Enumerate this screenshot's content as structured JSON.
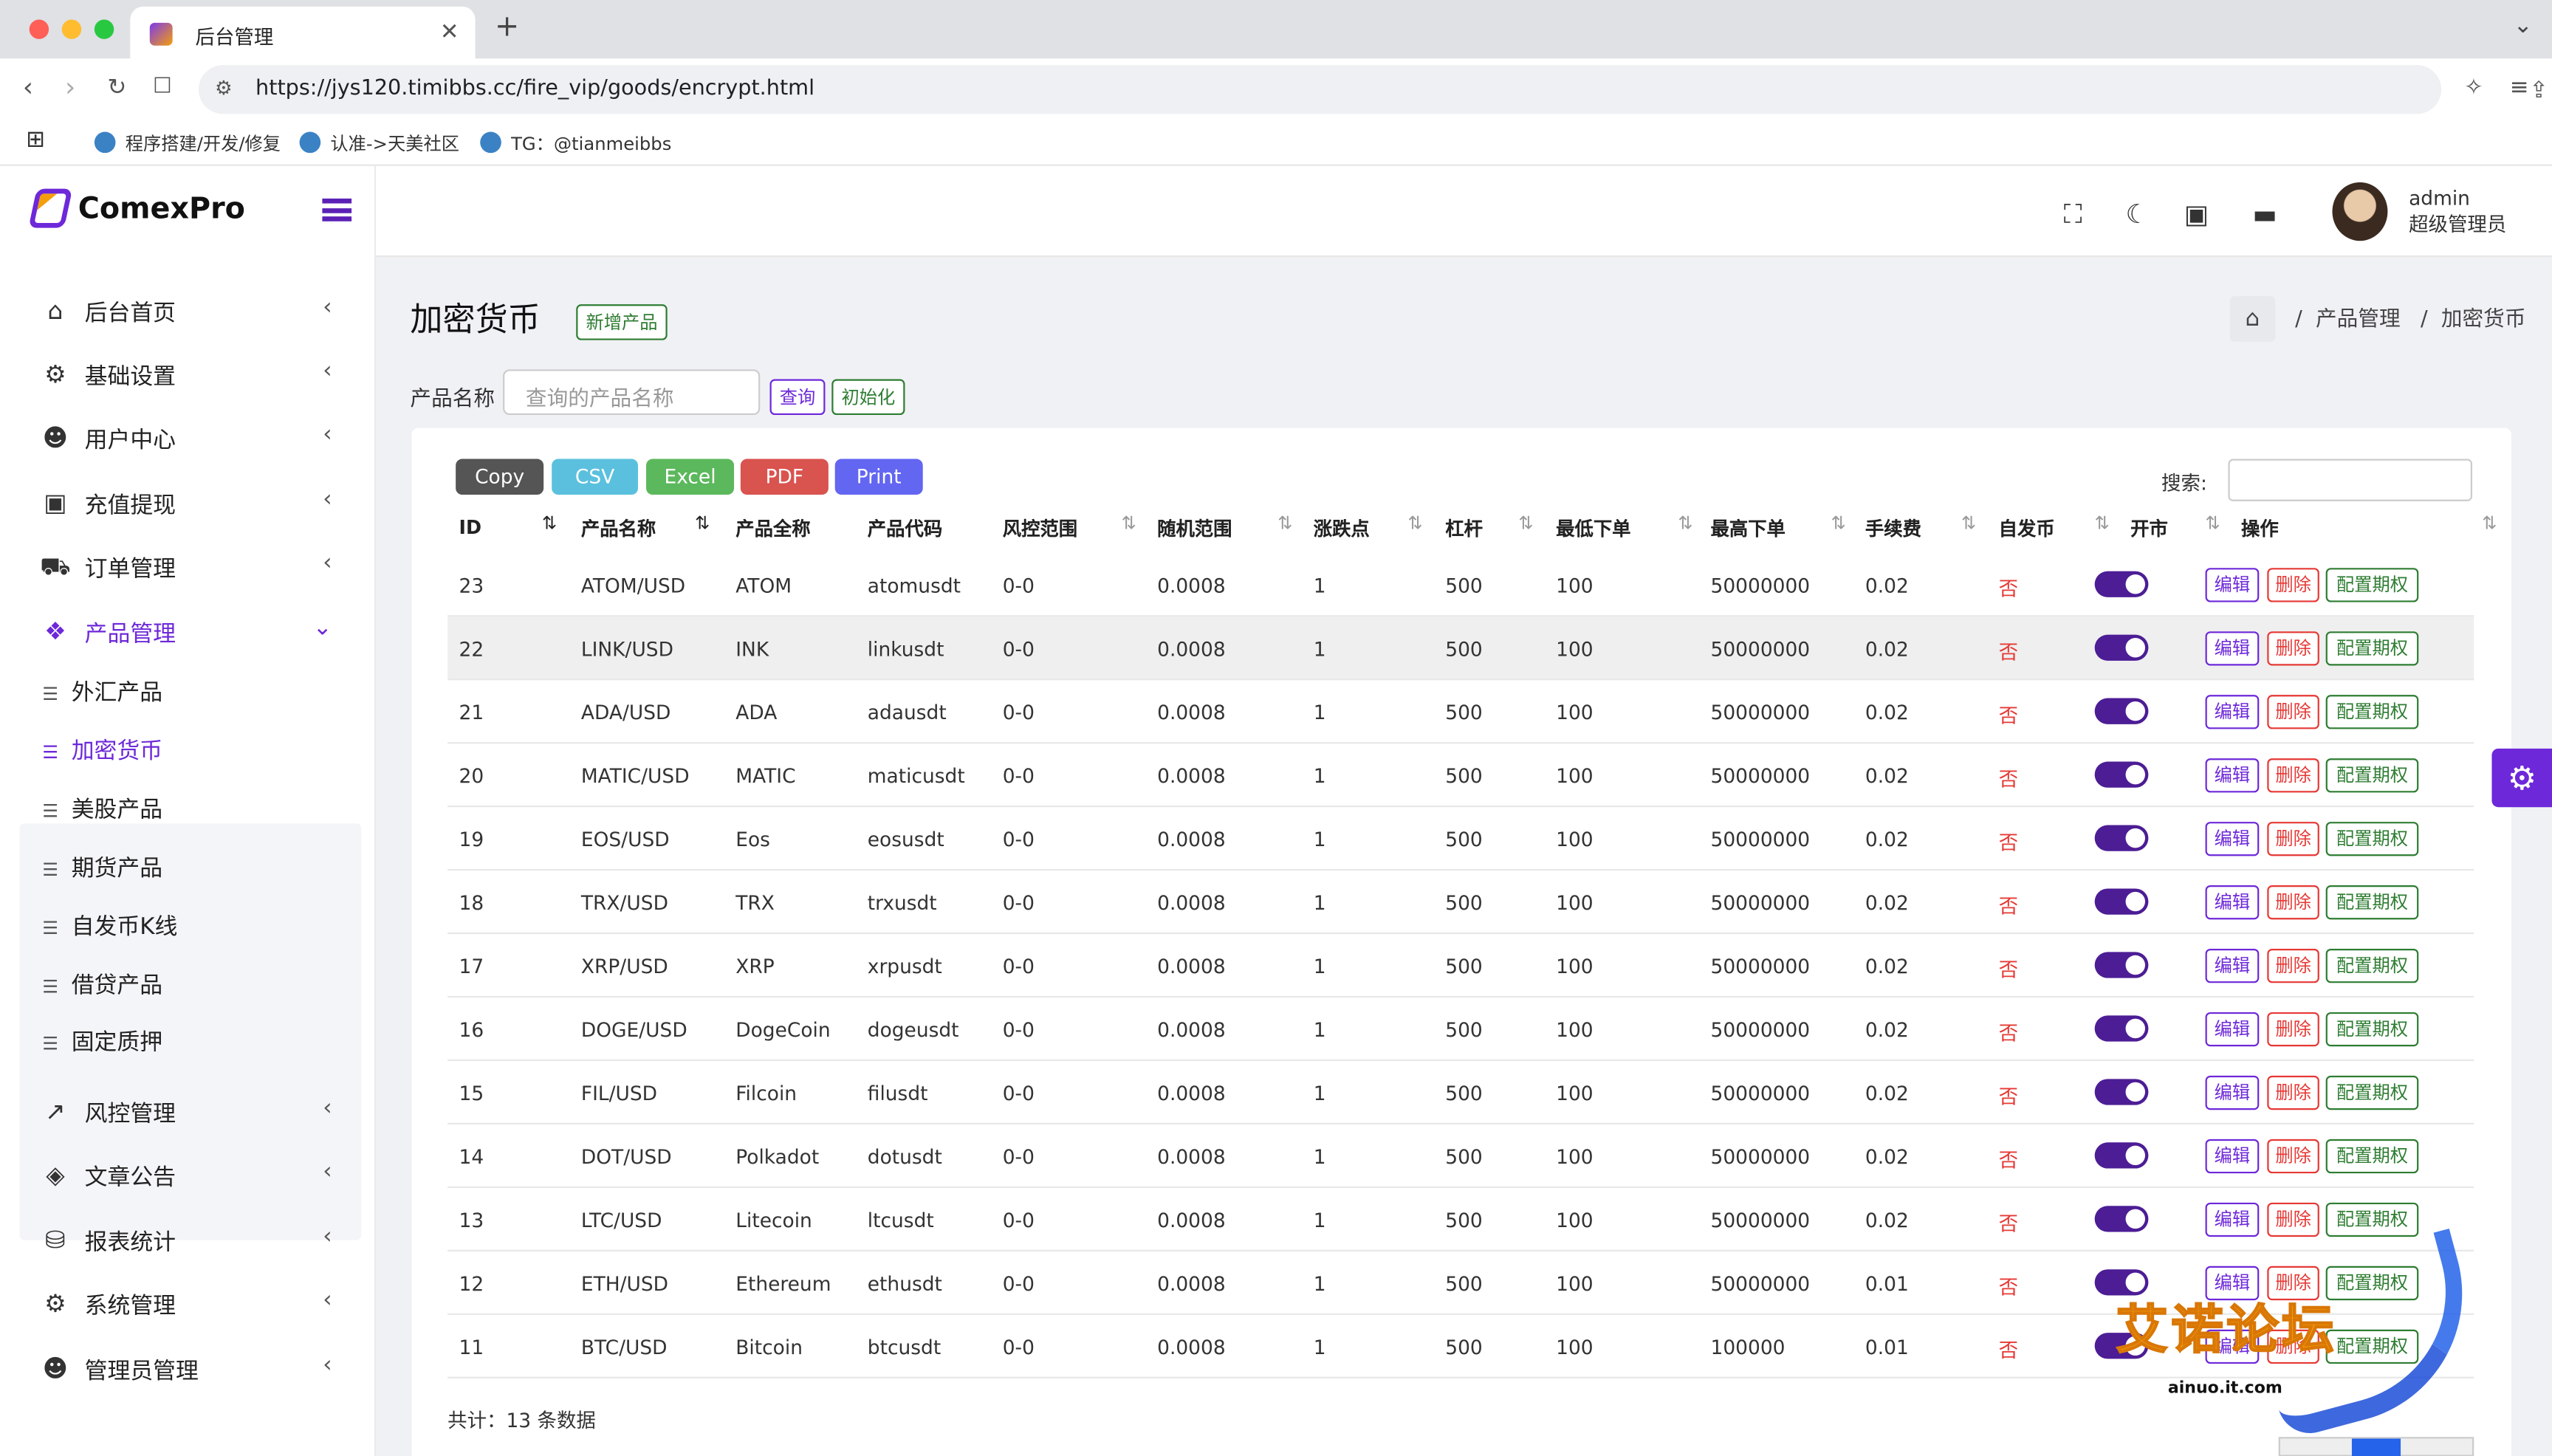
{
  "browser": {
    "tab_title": "后台管理",
    "url": "https://jys120.timibbs.cc/fire_vip/goods/encrypt.html",
    "bookmarks": [
      "程序搭建/开发/修复",
      "认准->天美社区",
      "TG：@tianmeibbs"
    ]
  },
  "brand": {
    "name": "ComexPro"
  },
  "user": {
    "name": "admin",
    "role": "超级管理员"
  },
  "sidebar": {
    "items": [
      {
        "label": "后台首页",
        "icon": "home-icon"
      },
      {
        "label": "基础设置",
        "icon": "gears-icon"
      },
      {
        "label": "用户中心",
        "icon": "users-icon"
      },
      {
        "label": "充值提现",
        "icon": "money-icon"
      },
      {
        "label": "订单管理",
        "icon": "cart-icon"
      },
      {
        "label": "产品管理",
        "icon": "cubes-icon"
      },
      {
        "label": "风控管理",
        "icon": "chart-line-icon"
      },
      {
        "label": "文章公告",
        "icon": "layers-icon"
      },
      {
        "label": "报表统计",
        "icon": "database-icon"
      },
      {
        "label": "系统管理",
        "icon": "gear-icon"
      },
      {
        "label": "管理员管理",
        "icon": "user-group-icon"
      }
    ],
    "sub_items": [
      "外汇产品",
      "加密货币",
      "美股产品",
      "期货产品",
      "自发币K线",
      "借贷产品",
      "固定质押"
    ],
    "active_sub": "加密货币"
  },
  "page": {
    "title": "加密货币",
    "add_button": "新增产品",
    "breadcrumb": [
      "产品管理",
      "加密货币"
    ],
    "filter": {
      "label": "产品名称",
      "placeholder": "查询的产品名称",
      "query_button": "查询",
      "init_button": "初始化"
    }
  },
  "export_buttons": [
    "Copy",
    "CSV",
    "Excel",
    "PDF",
    "Print"
  ],
  "search_label": "搜索:",
  "table": {
    "columns": [
      "ID",
      "产品名称",
      "产品全称",
      "产品代码",
      "风控范围",
      "随机范围",
      "涨跌点",
      "杠杆",
      "最低下单",
      "最高下单",
      "手续费",
      "自发币",
      "开市",
      "操作"
    ],
    "actions": [
      "编辑",
      "删除",
      "配置期权"
    ],
    "rows": [
      {
        "id": "23",
        "name": "ATOM/USD",
        "full": "ATOM",
        "code": "atomusdt",
        "risk": "0-0",
        "random": "0.0008",
        "point": "1",
        "lever": "500",
        "min": "100",
        "max": "50000000",
        "fee": "0.02",
        "self": "否",
        "open": true
      },
      {
        "id": "22",
        "name": "LINK/USD",
        "full": "INK",
        "code": "linkusdt",
        "risk": "0-0",
        "random": "0.0008",
        "point": "1",
        "lever": "500",
        "min": "100",
        "max": "50000000",
        "fee": "0.02",
        "self": "否",
        "open": true
      },
      {
        "id": "21",
        "name": "ADA/USD",
        "full": "ADA",
        "code": "adausdt",
        "risk": "0-0",
        "random": "0.0008",
        "point": "1",
        "lever": "500",
        "min": "100",
        "max": "50000000",
        "fee": "0.02",
        "self": "否",
        "open": true
      },
      {
        "id": "20",
        "name": "MATIC/USD",
        "full": "MATIC",
        "code": "maticusdt",
        "risk": "0-0",
        "random": "0.0008",
        "point": "1",
        "lever": "500",
        "min": "100",
        "max": "50000000",
        "fee": "0.02",
        "self": "否",
        "open": true
      },
      {
        "id": "19",
        "name": "EOS/USD",
        "full": "Eos",
        "code": "eosusdt",
        "risk": "0-0",
        "random": "0.0008",
        "point": "1",
        "lever": "500",
        "min": "100",
        "max": "50000000",
        "fee": "0.02",
        "self": "否",
        "open": true
      },
      {
        "id": "18",
        "name": "TRX/USD",
        "full": "TRX",
        "code": "trxusdt",
        "risk": "0-0",
        "random": "0.0008",
        "point": "1",
        "lever": "500",
        "min": "100",
        "max": "50000000",
        "fee": "0.02",
        "self": "否",
        "open": true
      },
      {
        "id": "17",
        "name": "XRP/USD",
        "full": "XRP",
        "code": "xrpusdt",
        "risk": "0-0",
        "random": "0.0008",
        "point": "1",
        "lever": "500",
        "min": "100",
        "max": "50000000",
        "fee": "0.02",
        "self": "否",
        "open": true
      },
      {
        "id": "16",
        "name": "DOGE/USD",
        "full": "DogeCoin",
        "code": "dogeusdt",
        "risk": "0-0",
        "random": "0.0008",
        "point": "1",
        "lever": "500",
        "min": "100",
        "max": "50000000",
        "fee": "0.02",
        "self": "否",
        "open": true
      },
      {
        "id": "15",
        "name": "FIL/USD",
        "full": "Filcoin",
        "code": "filusdt",
        "risk": "0-0",
        "random": "0.0008",
        "point": "1",
        "lever": "500",
        "min": "100",
        "max": "50000000",
        "fee": "0.02",
        "self": "否",
        "open": true
      },
      {
        "id": "14",
        "name": "DOT/USD",
        "full": "Polkadot",
        "code": "dotusdt",
        "risk": "0-0",
        "random": "0.0008",
        "point": "1",
        "lever": "500",
        "min": "100",
        "max": "50000000",
        "fee": "0.02",
        "self": "否",
        "open": true
      },
      {
        "id": "13",
        "name": "LTC/USD",
        "full": "Litecoin",
        "code": "ltcusdt",
        "risk": "0-0",
        "random": "0.0008",
        "point": "1",
        "lever": "500",
        "min": "100",
        "max": "50000000",
        "fee": "0.02",
        "self": "否",
        "open": true
      },
      {
        "id": "12",
        "name": "ETH/USD",
        "full": "Ethereum",
        "code": "ethusdt",
        "risk": "0-0",
        "random": "0.0008",
        "point": "1",
        "lever": "500",
        "min": "100",
        "max": "50000000",
        "fee": "0.01",
        "self": "否",
        "open": true
      },
      {
        "id": "11",
        "name": "BTC/USD",
        "full": "Bitcoin",
        "code": "btcusdt",
        "risk": "0-0",
        "random": "0.0008",
        "point": "1",
        "lever": "500",
        "min": "100",
        "max": "100000",
        "fee": "0.01",
        "self": "否",
        "open": true
      }
    ],
    "total": "共计：13 条数据"
  },
  "watermark": {
    "text": "艾诺论坛",
    "site": "ainuo.it.com"
  },
  "colors": {
    "accent": "#6d28d9",
    "danger": "#e53935",
    "success": "#2e7d32"
  }
}
